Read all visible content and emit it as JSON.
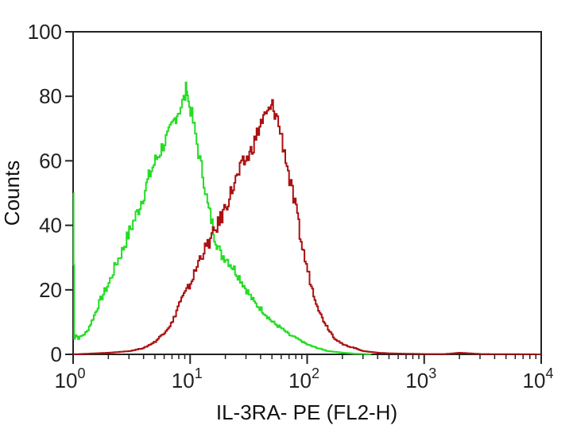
{
  "chart_data": {
    "type": "line",
    "title": "",
    "xlabel": "IL-3RA- PE (FL2-H)",
    "ylabel": "Counts",
    "x_scale": "log",
    "xlim": [
      1,
      10000
    ],
    "ylim": [
      0,
      100
    ],
    "x_ticks": [
      {
        "value": 1,
        "base": "10",
        "exp": "0"
      },
      {
        "value": 10,
        "base": "10",
        "exp": "1"
      },
      {
        "value": 100,
        "base": "10",
        "exp": "2"
      },
      {
        "value": 1000,
        "base": "10",
        "exp": "3"
      },
      {
        "value": 10000,
        "base": "10",
        "exp": "4"
      }
    ],
    "y_ticks": [
      0,
      20,
      40,
      60,
      80,
      100
    ],
    "grid": false,
    "legend": "none",
    "series": [
      {
        "color": "#22dd22",
        "x": [
          1.0,
          1.02,
          1.05,
          1.1,
          1.2,
          1.3,
          1.5,
          1.7,
          2.0,
          2.3,
          2.6,
          3.0,
          3.5,
          4.0,
          4.5,
          5.0,
          5.5,
          6.0,
          6.5,
          7.0,
          7.5,
          8.0,
          8.5,
          9.0,
          9.3,
          9.6,
          10.0,
          10.5,
          11.0,
          12.0,
          13.0,
          14.0,
          15.0,
          16.0,
          18.0,
          20.0,
          23.0,
          26.0,
          30.0,
          35.0,
          40.0,
          50.0,
          60.0,
          70.0,
          80.0,
          100.0,
          120.0,
          150.0,
          200.0,
          250.0,
          300.0,
          350.0
        ],
        "y": [
          50,
          5,
          6,
          5,
          6,
          7,
          12,
          17,
          22,
          28,
          32,
          38,
          44,
          50,
          56,
          60,
          63,
          66,
          68,
          71,
          74,
          76,
          78,
          80,
          84,
          78,
          76,
          72,
          68,
          60,
          54,
          46,
          42,
          37,
          31,
          30,
          27,
          24,
          20,
          16,
          14,
          10,
          8,
          6,
          5,
          3,
          2,
          1,
          0.5,
          0.2,
          0.1,
          0
        ]
      },
      {
        "color": "#aa1111",
        "x": [
          1.0,
          2.0,
          3.0,
          4.0,
          5.0,
          6.0,
          7.0,
          8.0,
          9.0,
          10.0,
          11.0,
          12.0,
          14.0,
          16.0,
          18.0,
          20.0,
          22.0,
          25.0,
          28.0,
          32.0,
          36.0,
          40.0,
          44.0,
          48.0,
          50.0,
          55.0,
          60.0,
          65.0,
          70.0,
          80.0,
          90.0,
          100.0,
          110.0,
          130.0,
          150.0,
          170.0,
          200.0,
          250.0,
          300.0,
          400.0,
          500.0,
          700.0,
          1000.0,
          1500.0,
          2000.0,
          3000.0,
          10000.0
        ],
        "y": [
          0,
          0.5,
          1,
          2,
          4,
          7,
          10,
          16,
          19,
          22,
          26,
          30,
          34,
          38,
          42,
          46,
          50,
          55,
          59,
          62,
          67,
          72,
          74,
          76,
          77,
          73,
          67,
          61,
          54,
          44,
          33,
          26,
          20,
          12,
          8,
          5,
          3,
          2,
          1,
          0.5,
          0.3,
          0.2,
          0.1,
          0.1,
          0.5,
          0.1,
          0
        ]
      }
    ]
  }
}
